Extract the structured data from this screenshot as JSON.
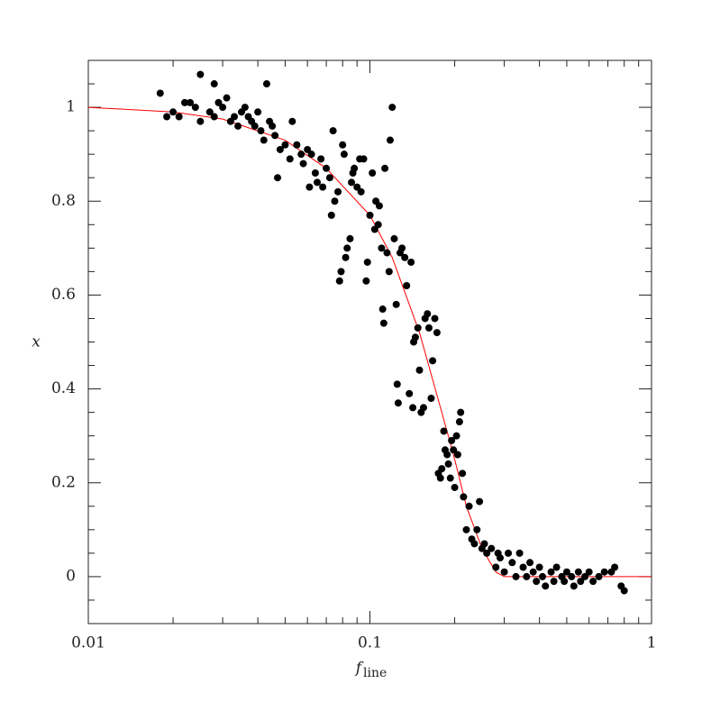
{
  "chart_data": {
    "type": "scatter",
    "xlabel": "f",
    "xlabel_subscript": "line",
    "ylabel": "x",
    "xlog": true,
    "xlim": [
      0.01,
      1
    ],
    "ylim": [
      -0.1,
      1.1
    ],
    "xticks": [
      0.01,
      0.1,
      1
    ],
    "yticks": [
      0,
      0.2,
      0.4,
      0.6,
      0.8,
      1
    ],
    "xminorticks": [
      0.02,
      0.03,
      0.04,
      0.05,
      0.06,
      0.07,
      0.08,
      0.09,
      0.2,
      0.3,
      0.4,
      0.5,
      0.6,
      0.7,
      0.8,
      0.9
    ],
    "yminorticks": [
      -0.05,
      0.05,
      0.1,
      0.15,
      0.25,
      0.3,
      0.35,
      0.45,
      0.5,
      0.55,
      0.65,
      0.7,
      0.75,
      0.85,
      0.9,
      0.95,
      1.05
    ],
    "color": "#000000",
    "x": [
      0.018,
      0.019,
      0.02,
      0.021,
      0.022,
      0.023,
      0.024,
      0.025,
      0.025,
      0.027,
      0.028,
      0.028,
      0.029,
      0.03,
      0.031,
      0.032,
      0.033,
      0.034,
      0.035,
      0.036,
      0.037,
      0.038,
      0.039,
      0.04,
      0.041,
      0.042,
      0.043,
      0.044,
      0.045,
      0.046,
      0.047,
      0.048,
      0.05,
      0.052,
      0.053,
      0.055,
      0.057,
      0.058,
      0.06,
      0.061,
      0.062,
      0.064,
      0.065,
      0.067,
      0.068,
      0.07,
      0.072,
      0.073,
      0.074,
      0.075,
      0.077,
      0.078,
      0.079,
      0.08,
      0.081,
      0.082,
      0.083,
      0.085,
      0.086,
      0.087,
      0.088,
      0.09,
      0.092,
      0.093,
      0.095,
      0.097,
      0.098,
      0.1,
      0.102,
      0.104,
      0.105,
      0.107,
      0.108,
      0.11,
      0.111,
      0.112,
      0.113,
      0.115,
      0.117,
      0.118,
      0.12,
      0.122,
      0.124,
      0.125,
      0.126,
      0.128,
      0.13,
      0.133,
      0.135,
      0.138,
      0.14,
      0.142,
      0.143,
      0.145,
      0.148,
      0.15,
      0.152,
      0.155,
      0.157,
      0.16,
      0.162,
      0.165,
      0.167,
      0.17,
      0.173,
      0.175,
      0.178,
      0.18,
      0.183,
      0.185,
      0.188,
      0.19,
      0.193,
      0.195,
      0.198,
      0.2,
      0.203,
      0.205,
      0.208,
      0.21,
      0.213,
      0.215,
      0.22,
      0.225,
      0.23,
      0.235,
      0.24,
      0.245,
      0.25,
      0.255,
      0.26,
      0.27,
      0.28,
      0.285,
      0.29,
      0.3,
      0.31,
      0.32,
      0.33,
      0.34,
      0.35,
      0.36,
      0.37,
      0.38,
      0.39,
      0.4,
      0.41,
      0.42,
      0.44,
      0.45,
      0.46,
      0.48,
      0.49,
      0.5,
      0.52,
      0.53,
      0.55,
      0.56,
      0.58,
      0.6,
      0.62,
      0.65,
      0.68,
      0.72,
      0.74,
      0.78,
      0.8
    ],
    "values": [
      1.03,
      0.98,
      0.99,
      0.98,
      1.01,
      1.01,
      1.0,
      1.07,
      0.97,
      0.99,
      1.05,
      0.98,
      1.01,
      1.0,
      1.02,
      0.97,
      0.98,
      0.96,
      0.99,
      1.0,
      0.98,
      0.97,
      0.96,
      0.99,
      0.95,
      0.93,
      1.05,
      0.97,
      0.96,
      0.94,
      0.85,
      0.91,
      0.92,
      0.89,
      0.97,
      0.92,
      0.9,
      0.88,
      0.91,
      0.83,
      0.9,
      0.86,
      0.84,
      0.89,
      0.83,
      0.87,
      0.85,
      0.77,
      0.95,
      0.8,
      0.82,
      0.63,
      0.65,
      0.92,
      0.9,
      0.68,
      0.7,
      0.72,
      0.84,
      0.86,
      0.87,
      0.83,
      0.89,
      0.82,
      0.89,
      0.63,
      0.67,
      0.77,
      0.86,
      0.74,
      0.8,
      0.75,
      0.79,
      0.7,
      0.57,
      0.54,
      0.87,
      0.69,
      0.65,
      0.93,
      1.0,
      0.72,
      0.58,
      0.41,
      0.37,
      0.69,
      0.7,
      0.68,
      0.62,
      0.39,
      0.67,
      0.36,
      0.5,
      0.51,
      0.53,
      0.44,
      0.35,
      0.36,
      0.55,
      0.56,
      0.53,
      0.38,
      0.46,
      0.55,
      0.52,
      0.22,
      0.21,
      0.23,
      0.31,
      0.27,
      0.26,
      0.24,
      0.21,
      0.29,
      0.27,
      0.19,
      0.3,
      0.26,
      0.33,
      0.35,
      0.22,
      0.17,
      0.1,
      0.15,
      0.08,
      0.07,
      0.1,
      0.16,
      0.06,
      0.07,
      0.05,
      0.06,
      0.02,
      0.05,
      0.04,
      0.01,
      0.05,
      0.03,
      0.0,
      0.05,
      0.02,
      0.0,
      0.03,
      0.01,
      -0.01,
      0.02,
      0.0,
      -0.02,
      0.01,
      -0.01,
      0.02,
      0.0,
      -0.01,
      0.01,
      0.0,
      -0.02,
      0.01,
      -0.01,
      0.0,
      0.01,
      -0.01,
      0.0,
      0.01,
      0.01,
      0.02,
      -0.02,
      -0.03
    ],
    "curve": {
      "color": "#ff0000",
      "x": [
        0.01,
        0.02,
        0.03,
        0.05,
        0.07,
        0.1,
        0.12,
        0.15,
        0.18,
        0.2,
        0.22,
        0.25,
        0.28,
        0.3,
        0.5,
        1
      ],
      "values": [
        1.0,
        0.99,
        0.975,
        0.93,
        0.87,
        0.77,
        0.68,
        0.52,
        0.35,
        0.25,
        0.15,
        0.06,
        0.01,
        0.0,
        0.0,
        0.0
      ]
    }
  }
}
